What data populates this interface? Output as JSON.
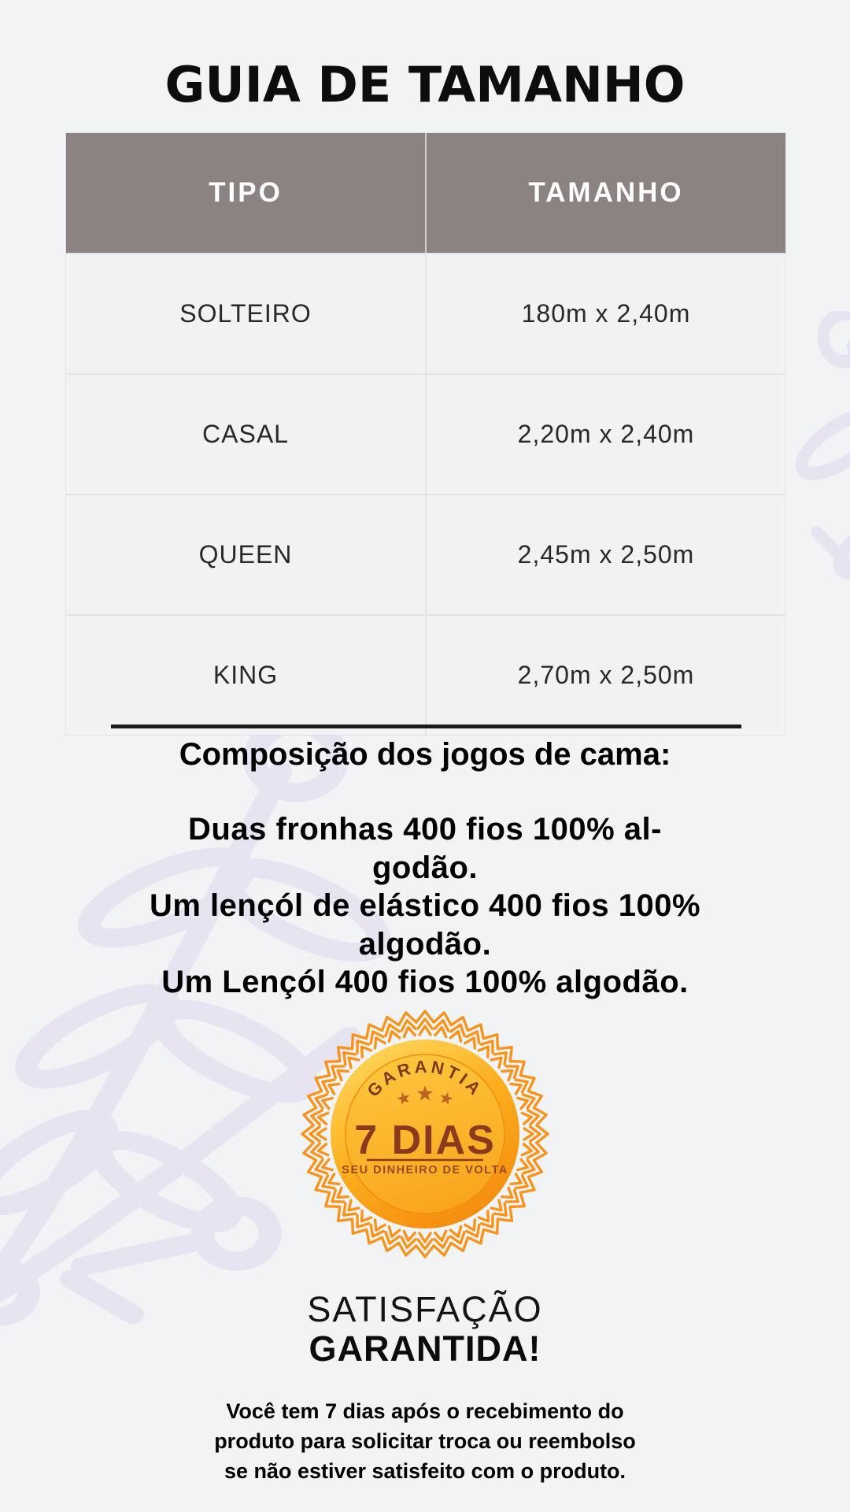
{
  "page": {
    "title": "GUIA DE TAMANHO"
  },
  "table": {
    "headers": [
      "TIPO",
      "TAMANHO"
    ],
    "rows": [
      {
        "tipo": "SOLTEIRO",
        "tamanho": "180m x 2,40m"
      },
      {
        "tipo": "CASAL",
        "tamanho": "2,20m x 2,40m"
      },
      {
        "tipo": "QUEEN",
        "tamanho": "2,45m x 2,50m"
      },
      {
        "tipo": "KING",
        "tamanho": "2,70m x 2,50m"
      }
    ]
  },
  "composition": {
    "heading": "Composição dos jogos de cama:",
    "lines": [
      "Duas fronhas 400 fios 100% al-",
      "godão.",
      "Um lençól de elástico 400 fios 100%",
      "algodão.",
      "Um Lençól 400 fios 100% algodão."
    ]
  },
  "badge": {
    "arc_text": "GARANTIA",
    "title": "7 DIAS",
    "subtitle": "SEU DINHEIRO DE VOLTA"
  },
  "satisfaction": {
    "line1": "SATISFAÇÃO",
    "line2": "GARANTIDA!"
  },
  "footer": {
    "lines": [
      "Você tem 7 dias após o recebimento do",
      "produto para solicitar troca ou reembolso",
      "se não estiver satisfeito com o produto."
    ]
  },
  "colors": {
    "background": "#f2f3f5",
    "table_header_bg": "#8a8381",
    "table_header_text": "#ffffff",
    "divider_line": "#1b1b1b",
    "seal_gold_light": "#ffd95e",
    "seal_gold_dark": "#f58c0e",
    "seal_accent": "#f7941d",
    "seal_text": "#8a3a1d",
    "watermark": "#e3def0"
  }
}
